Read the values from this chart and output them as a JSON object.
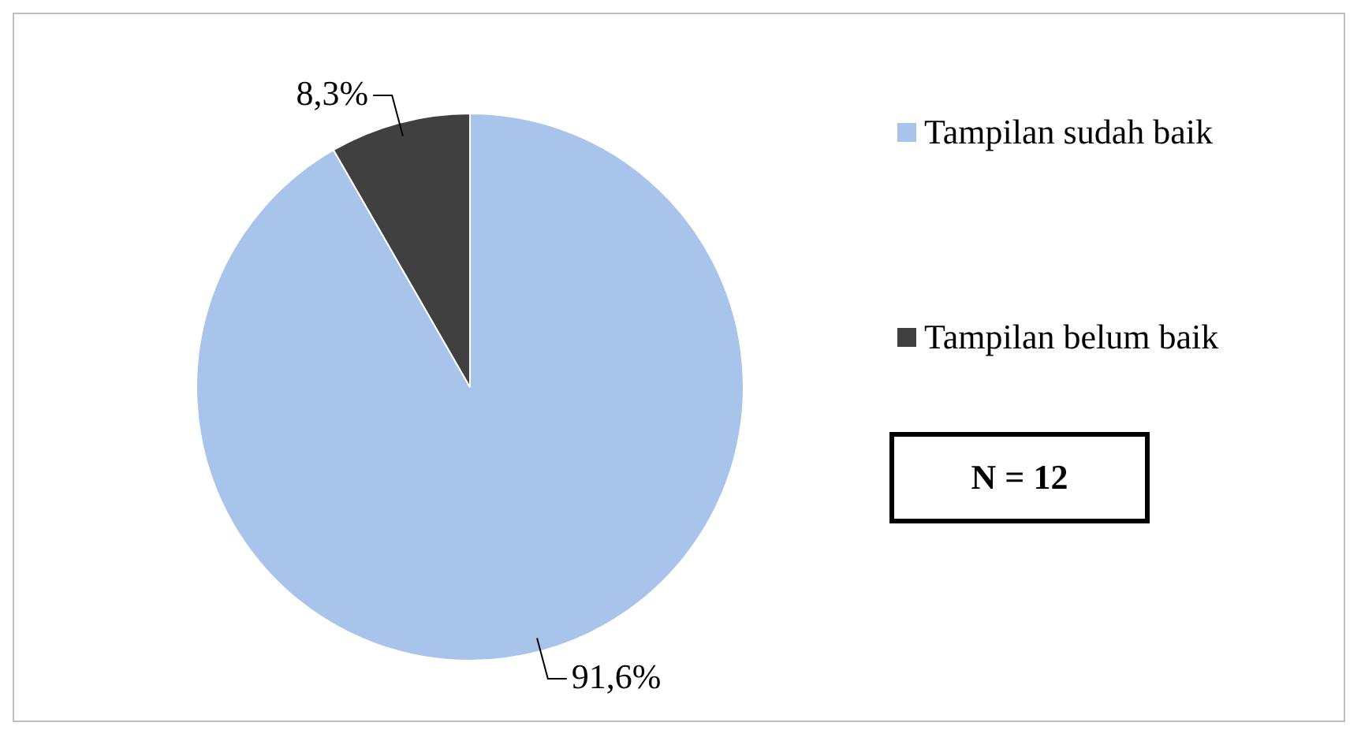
{
  "chart_data": {
    "type": "pie",
    "categories": [
      "Tampilan sudah baik",
      "Tampilan belum baik"
    ],
    "values": [
      91.6,
      8.3
    ],
    "colors": [
      "#a9c4eb",
      "#404040"
    ],
    "value_labels": [
      "91,6%",
      "8,3%"
    ],
    "legend": "right",
    "annotations": [
      "N = 12"
    ]
  }
}
